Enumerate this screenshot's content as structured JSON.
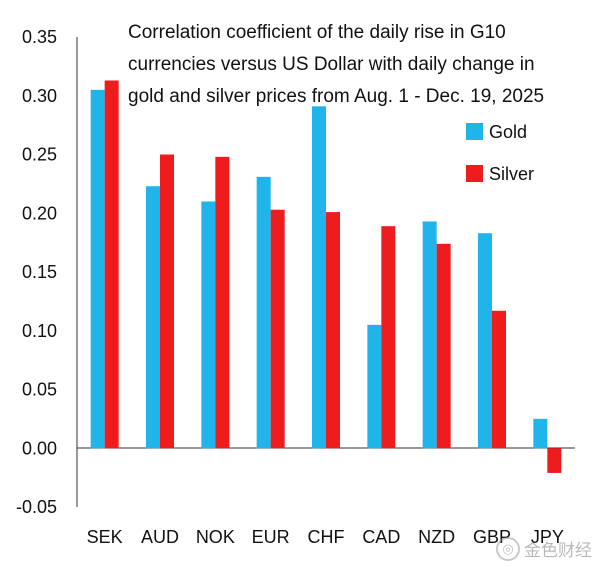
{
  "chart_data": {
    "type": "bar",
    "title_lines": [
      "Correlation coefficient of the daily rise in G10",
      "currencies versus US Dollar with daily change in",
      "gold and silver prices from Aug. 1 - Dec. 19, 2025"
    ],
    "categories": [
      "SEK",
      "AUD",
      "NOK",
      "EUR",
      "CHF",
      "CAD",
      "NZD",
      "GBP",
      "JPY"
    ],
    "series": [
      {
        "name": "Gold",
        "color": "#1fb4ea",
        "values": [
          0.305,
          0.223,
          0.21,
          0.231,
          0.291,
          0.105,
          0.193,
          0.183,
          0.025
        ]
      },
      {
        "name": "Silver",
        "color": "#ee1c1c",
        "values": [
          0.313,
          0.25,
          0.248,
          0.203,
          0.201,
          0.189,
          0.174,
          0.117,
          -0.021
        ]
      }
    ],
    "ylim": [
      -0.05,
      0.35
    ],
    "yticks": [
      "0.35",
      "0.30",
      "0.25",
      "0.20",
      "0.15",
      "0.10",
      "0.05",
      "0.00",
      "-0.05"
    ],
    "ytick_values": [
      0.35,
      0.3,
      0.25,
      0.2,
      0.15,
      0.1,
      0.05,
      0.0,
      -0.05
    ],
    "grid": false,
    "legend_position": "right"
  },
  "watermark": {
    "icon": "coin-logo-icon",
    "text": "金色财经"
  }
}
